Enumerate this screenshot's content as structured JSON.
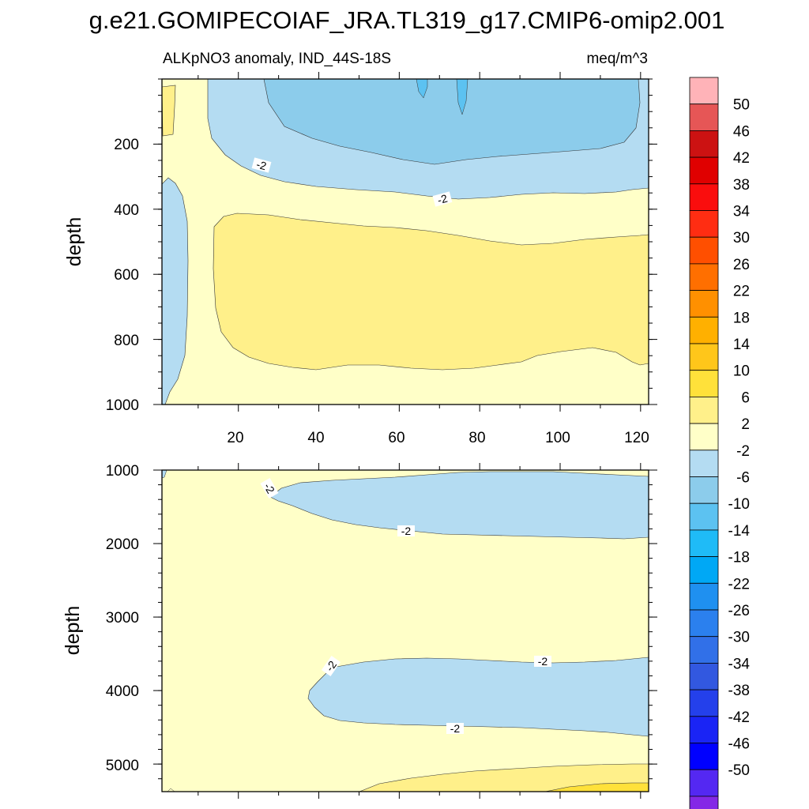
{
  "title": "g.e21.GOMIPECOIAF_JRA.TL319_g17.CMIP6-omip2.001",
  "chart_data": {
    "type": "contour",
    "variable": "ALKpNO3 anomaly, IND_44S-18S",
    "units": "meq/m^3",
    "xlabel": "",
    "xlim": [
      1,
      122
    ],
    "x_ticks": [
      20,
      40,
      60,
      80,
      100,
      120
    ],
    "colorbar": {
      "levels": [
        -50,
        -46,
        -42,
        -38,
        -34,
        -30,
        -26,
        -22,
        -18,
        -14,
        -10,
        -6,
        -2,
        2,
        6,
        10,
        14,
        18,
        22,
        26,
        30,
        34,
        38,
        42,
        46,
        50
      ],
      "labels": [
        "50",
        "46",
        "42",
        "38",
        "34",
        "30",
        "26",
        "22",
        "18",
        "14",
        "10",
        "6",
        "2",
        "-2",
        "-6",
        "-10",
        "-14",
        "-18",
        "-22",
        "-26",
        "-30",
        "-34",
        "-38",
        "-42",
        "-46",
        "-50"
      ],
      "colors": [
        "#ffb3b8",
        "#e65656",
        "#cc1212",
        "#e00000",
        "#fa0d0d",
        "#ff2d12",
        "#ff4f00",
        "#ff6f00",
        "#ff9000",
        "#ffb000",
        "#ffc61a",
        "#ffe13a",
        "#fff08a",
        "#ffffc8",
        "#b4dcf2",
        "#8ccceb",
        "#5cc2f1",
        "#1fbbf7",
        "#00a8f5",
        "#1f90f0",
        "#2b80ee",
        "#3170e8",
        "#3258e0",
        "#2440eb",
        "#1a24f5",
        "#0000ff",
        "#5428f2",
        "#8428e6"
      ]
    },
    "panels": [
      {
        "name": "upper",
        "ylabel": "depth",
        "ylim": [
          0,
          1000
        ],
        "y_ticks": [
          200,
          400,
          600,
          800,
          1000
        ],
        "contour_labels": [
          "-2",
          "-2"
        ]
      },
      {
        "name": "lower",
        "ylabel": "depth",
        "ylim": [
          1000,
          5375
        ],
        "y_ticks": [
          1000,
          2000,
          3000,
          4000,
          5000
        ],
        "contour_labels": [
          "-2",
          "-2",
          "-2",
          "-2",
          "-2"
        ]
      }
    ]
  }
}
